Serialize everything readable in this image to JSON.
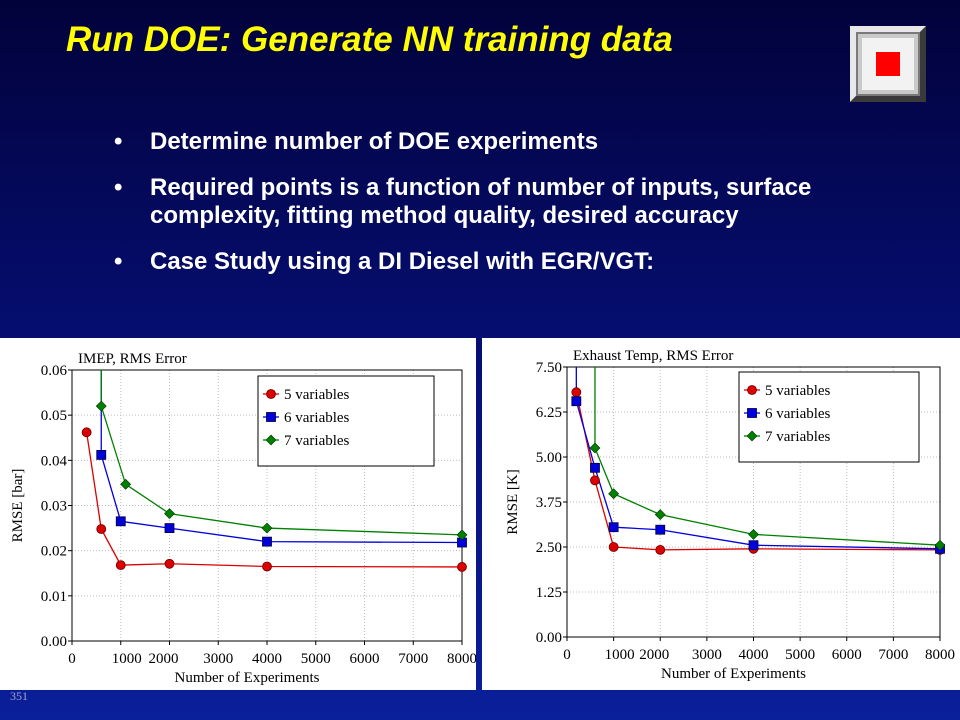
{
  "slide": {
    "title": "Run DOE: Generate NN training data",
    "bullets": [
      "Determine number of DOE experiments",
      "Required points is a function of number of inputs, surface complexity, fitting method quality, desired accuracy",
      "Case Study using a DI Diesel with EGR/VGT:"
    ],
    "page_number": "351",
    "logo_icon": "stop-square-icon",
    "bullet_icon": "•",
    "colors": {
      "title": "#ffff00",
      "text": "#ffffff",
      "logo_red": "#ff0000"
    }
  },
  "chart_data": [
    {
      "type": "line",
      "title": "IMEP, RMS Error",
      "xlabel": "Number of Experiments",
      "ylabel": "RMSE [bar]",
      "xlim": [
        0,
        8000
      ],
      "ylim": [
        0,
        0.06
      ],
      "xticks": [
        0,
        1000,
        2000,
        3000,
        4000,
        5000,
        6000,
        7000,
        8000
      ],
      "xtick_labels": [
        "0",
        "1000",
        "2000",
        "3000",
        "4000",
        "5000",
        "6000",
        "7000",
        "8000"
      ],
      "yticks": [
        0,
        0.01,
        0.02,
        0.03,
        0.04,
        0.05,
        0.06
      ],
      "ytick_labels": [
        "0.00",
        "0.01",
        "0.02",
        "0.03",
        "0.04",
        "0.05",
        "0.06"
      ],
      "grid": true,
      "legend_position": "top-right",
      "series": [
        {
          "name": "5 variables",
          "color": "#dd0000",
          "marker": "circle",
          "x": [
            300,
            600,
            1000,
            2000,
            4000,
            8000
          ],
          "y": [
            0.0462,
            0.0248,
            0.0168,
            0.0171,
            0.0165,
            0.0164
          ],
          "tail": [
            0.0466,
            0.0462
          ]
        },
        {
          "name": "6 variables",
          "color": "#0000dd",
          "marker": "square",
          "x": [
            600,
            1000,
            2000,
            4000,
            8000
          ],
          "y": [
            0.0412,
            0.0265,
            0.025,
            0.022,
            0.0218
          ],
          "tail": [
            0.0605,
            0.0412
          ]
        },
        {
          "name": "7 variables",
          "color": "#008000",
          "marker": "diamond",
          "x": [
            600,
            1100,
            2000,
            4000,
            8000
          ],
          "y": [
            0.052,
            0.0347,
            0.0282,
            0.025,
            0.0235
          ],
          "tail": [
            0.0605,
            0.052
          ]
        }
      ]
    },
    {
      "type": "line",
      "title": "Exhaust Temp, RMS  Error",
      "xlabel": "Number of Experiments",
      "ylabel": "RMSE [K]",
      "xlim": [
        0,
        8000
      ],
      "ylim": [
        0,
        7.5
      ],
      "xticks": [
        0,
        1000,
        2000,
        3000,
        4000,
        5000,
        6000,
        7000,
        8000
      ],
      "xtick_labels": [
        "0",
        "1000",
        "2000",
        "3000",
        "4000",
        "5000",
        "6000",
        "7000",
        "8000"
      ],
      "yticks": [
        0,
        1.25,
        2.5,
        3.75,
        5.0,
        6.25,
        7.5
      ],
      "ytick_labels": [
        "0.00",
        "1.25",
        "2.50",
        "3.75",
        "5.00",
        "6.25",
        "7.50"
      ],
      "grid": true,
      "legend_position": "top-right",
      "series": [
        {
          "name": "5 variables",
          "color": "#dd0000",
          "marker": "circle",
          "x": [
            200,
            600,
            1000,
            2000,
            4000,
            8000
          ],
          "y": [
            6.8,
            4.35,
            2.5,
            2.42,
            2.45,
            2.42
          ],
          "tail": [
            6.8,
            6.8
          ]
        },
        {
          "name": "6 variables",
          "color": "#0000dd",
          "marker": "square",
          "x": [
            200,
            600,
            1000,
            2000,
            4000,
            8000
          ],
          "y": [
            6.55,
            4.7,
            3.05,
            2.98,
            2.55,
            2.45
          ],
          "tail": [
            7.6,
            6.55
          ]
        },
        {
          "name": "7 variables",
          "color": "#008000",
          "marker": "diamond",
          "x": [
            600,
            1000,
            2000,
            4000,
            8000
          ],
          "y": [
            5.25,
            3.98,
            3.4,
            2.85,
            2.55
          ],
          "tail": [
            7.6,
            5.25
          ]
        }
      ]
    }
  ]
}
